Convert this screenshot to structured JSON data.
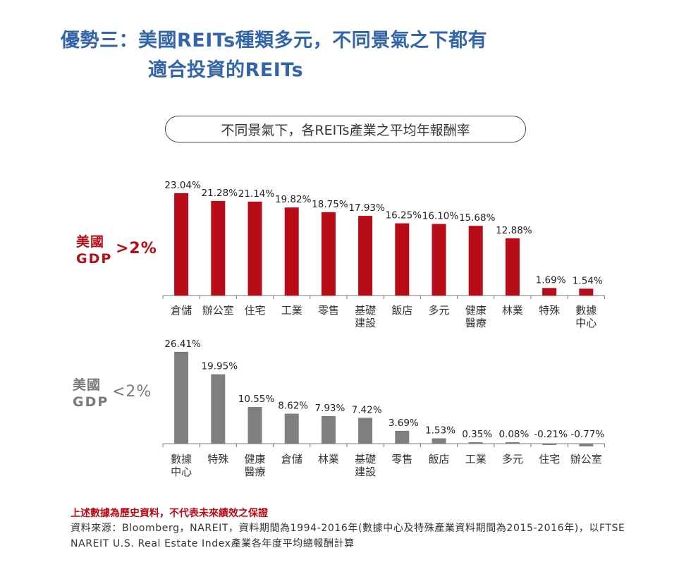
{
  "title": {
    "line1": "優勢三：美國REITs種類多元，不同景氣之下都有",
    "line2": "適合投資的REITs"
  },
  "subtitle": "不同景氣下，各REITs產業之平均年報酬率",
  "colors": {
    "title": "#3565a9",
    "top_bars": "#b80d18",
    "bottom_bars": "#7f7f7f",
    "note": "#b80d18"
  },
  "gdp_top": {
    "line1": "美國",
    "line2": "GDP",
    "comparator": ">2%"
  },
  "gdp_bottom": {
    "line1": "美國",
    "line2": "GDP",
    "comparator": "<2%"
  },
  "chart_data": [
    {
      "type": "bar",
      "series": [
        {
          "name": "美國GDP>2%",
          "values": [
            23.04,
            21.28,
            21.14,
            19.82,
            18.75,
            17.93,
            16.25,
            16.1,
            15.68,
            12.88,
            1.69,
            1.54
          ]
        }
      ],
      "categories": [
        [
          "倉儲"
        ],
        [
          "辦公室"
        ],
        [
          "住宅"
        ],
        [
          "工業"
        ],
        [
          "零售"
        ],
        [
          "基礎",
          "建設"
        ],
        [
          "飯店"
        ],
        [
          "多元"
        ],
        [
          "健康",
          "醫療"
        ],
        [
          "林業"
        ],
        [
          "特殊"
        ],
        [
          "數據",
          "中心"
        ]
      ],
      "data_labels": [
        "23.04%",
        "21.28%",
        "21.14%",
        "19.82%",
        "18.75%",
        "17.93%",
        "16.25%",
        "16.10%",
        "15.68%",
        "12.88%",
        "1.69%",
        "1.54%"
      ],
      "unit": "%"
    },
    {
      "type": "bar",
      "series": [
        {
          "name": "美國GDP<2%",
          "values": [
            26.41,
            19.95,
            10.55,
            8.62,
            7.93,
            7.42,
            3.69,
            1.53,
            0.35,
            0.08,
            -0.21,
            -0.77
          ]
        }
      ],
      "categories": [
        [
          "數據",
          "中心"
        ],
        [
          "特殊"
        ],
        [
          "健康",
          "醫療"
        ],
        [
          "倉儲"
        ],
        [
          "林業"
        ],
        [
          "基礎",
          "建設"
        ],
        [
          "零售"
        ],
        [
          "飯店"
        ],
        [
          "工業"
        ],
        [
          "多元"
        ],
        [
          "住宅"
        ],
        [
          "辦公室"
        ]
      ],
      "data_labels": [
        "26.41%",
        "19.95%",
        "10.55%",
        "8.62%",
        "7.93%",
        "7.42%",
        "3.69%",
        "1.53%",
        "0.35%",
        "0.08%",
        "-0.21%",
        "-0.77%"
      ],
      "unit": "%"
    }
  ],
  "footer": {
    "note": "上述數據為歷史資料，不代表未來績效之保證",
    "source": "資料來源：Bloomberg，NAREIT，資料期間為1994-2016年(數據中心及特殊產業資料期間為2015-2016年)，以FTSE NAREIT U.S. Real Estate Index產業各年度平均總報酬計算"
  }
}
